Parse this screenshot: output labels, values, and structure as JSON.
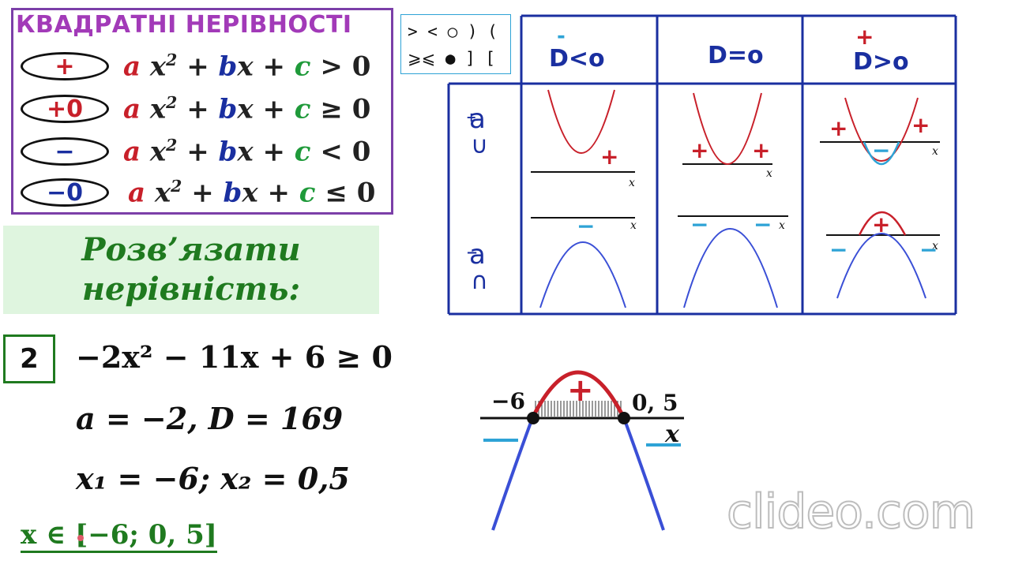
{
  "title": "КВАДРАТНІ НЕРІВНОСТІ",
  "inequalities": [
    {
      "sign": "+",
      "sign_color": "#c8202a",
      "rel": ">"
    },
    {
      "sign": "+0",
      "sign_color": "#c8202a",
      "rel": "≥"
    },
    {
      "sign": "−",
      "sign_color": "#1a2fa0",
      "rel": "<"
    },
    {
      "sign": "−0",
      "sign_color": "#1a2fa0",
      "rel": "≤"
    }
  ],
  "formula_parts": {
    "a": "a",
    "x": "x",
    "b": "b",
    "c": "c",
    "plus": "+",
    "zero": "0",
    "sq": "2"
  },
  "symbols": {
    "row1": "> <  ○ ) (",
    "row2": "⩾⩽ ● ] ["
  },
  "table": {
    "headers": [
      {
        "sign": "-",
        "label": "D<o"
      },
      {
        "sign": "",
        "label": "D=o"
      },
      {
        "sign": "+",
        "label": "D>o"
      }
    ],
    "axis_label": "x",
    "row_pos": {
      "sign": "+",
      "a": "a",
      "arc": "∪"
    },
    "row_neg": {
      "sign": "−",
      "a": "a",
      "arc": "∩"
    },
    "plus": "+",
    "minus": "−"
  },
  "solve": {
    "line1": "Розв’язати",
    "line2": "нерівність:"
  },
  "problem": {
    "number": "2",
    "equation": "−2x² − 11x + 6 ≥ 0",
    "line_a": "a = −2, D = 169",
    "roots": "x₁ = −6;  x₂ = 0,5",
    "answer": "x ∈ [−6; 0, 5]"
  },
  "graph": {
    "root1": "−6",
    "root2": "0, 5",
    "plus": "+",
    "axis": "x"
  },
  "watermark": "clideo.com",
  "colors": {
    "purple": "#7b3fa8",
    "red": "#c8202a",
    "blue": "#1a2fa0",
    "green": "#1f7a1f",
    "cyan": "#2ea3d6"
  }
}
